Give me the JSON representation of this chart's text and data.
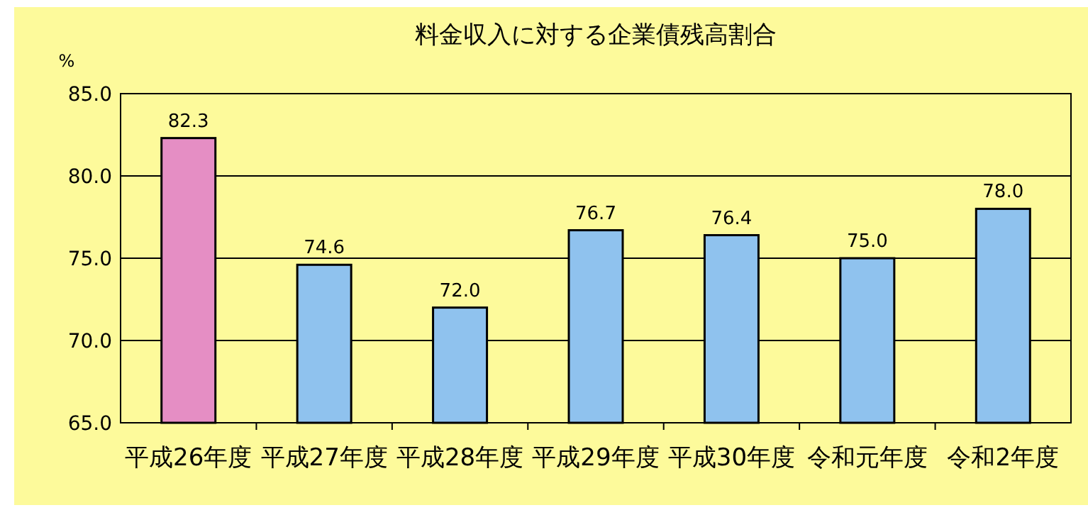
{
  "chart_data": {
    "type": "bar",
    "title": "料金収入に対する企業債残高割合",
    "ylabel": "%",
    "categories": [
      "平成26年度",
      "平成27年度",
      "平成28年度",
      "平成29年度",
      "平成30年度",
      "令和元年度",
      "令和2年度"
    ],
    "values": [
      82.3,
      74.6,
      72.0,
      76.7,
      76.4,
      75.0,
      78.0
    ],
    "colors": [
      "#e58ec4",
      "#8fc2ee",
      "#8fc2ee",
      "#8fc2ee",
      "#8fc2ee",
      "#8fc2ee",
      "#8fc2ee"
    ],
    "ylim": [
      65,
      85
    ],
    "yticks": [
      {
        "value": 65,
        "label": "65.0"
      },
      {
        "value": 70,
        "label": "70.0"
      },
      {
        "value": 75,
        "label": "75.0"
      },
      {
        "value": 80,
        "label": "80.0"
      },
      {
        "value": 85,
        "label": "85.0"
      }
    ],
    "grid": "y",
    "value_labels": [
      "82.3",
      "74.6",
      "72.0",
      "76.7",
      "76.4",
      "75.0",
      "78.0"
    ]
  }
}
